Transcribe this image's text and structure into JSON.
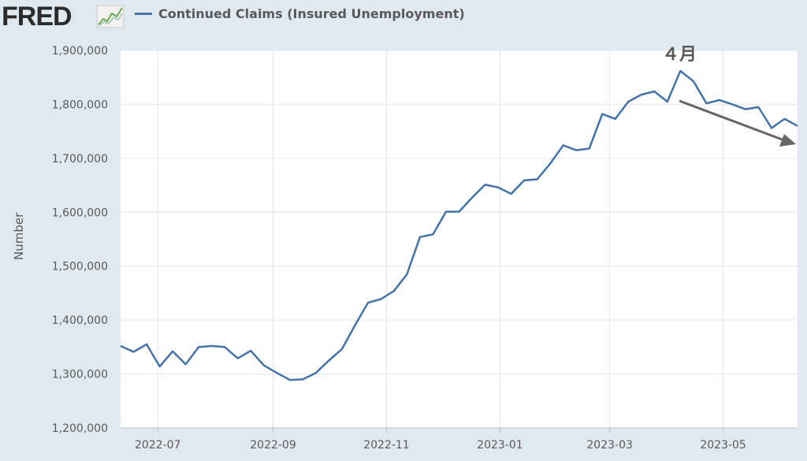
{
  "brand": {
    "name": "FRED"
  },
  "chart_data": {
    "type": "line",
    "title": "",
    "ylabel": "Number",
    "xlabel": "",
    "ylim": [
      1200000,
      1900000
    ],
    "yticks": [
      1200000,
      1300000,
      1400000,
      1500000,
      1600000,
      1700000,
      1800000,
      1900000
    ],
    "ytick_labels": [
      "1,200,000",
      "1,300,000",
      "1,400,000",
      "1,500,000",
      "1,600,000",
      "1,700,000",
      "1,800,000",
      "1,900,000"
    ],
    "xlim": [
      "2022-06-11",
      "2023-06-10"
    ],
    "xticks": [
      "2022-07-01",
      "2022-09-01",
      "2022-11-01",
      "2023-01-01",
      "2023-03-01",
      "2023-05-01"
    ],
    "xtick_labels": [
      "2022-07",
      "2022-09",
      "2022-11",
      "2023-01",
      "2023-03",
      "2023-05"
    ],
    "grid": true,
    "legend": "top-left",
    "series": [
      {
        "name": "Continued Claims (Insured Unemployment)",
        "color": "#4572a7",
        "x": [
          "2022-06-11",
          "2022-06-18",
          "2022-06-25",
          "2022-07-02",
          "2022-07-09",
          "2022-07-16",
          "2022-07-23",
          "2022-07-30",
          "2022-08-06",
          "2022-08-13",
          "2022-08-20",
          "2022-08-27",
          "2022-09-03",
          "2022-09-10",
          "2022-09-17",
          "2022-09-24",
          "2022-10-01",
          "2022-10-08",
          "2022-10-15",
          "2022-10-22",
          "2022-10-29",
          "2022-11-05",
          "2022-11-12",
          "2022-11-19",
          "2022-11-26",
          "2022-12-03",
          "2022-12-10",
          "2022-12-17",
          "2022-12-24",
          "2022-12-31",
          "2023-01-07",
          "2023-01-14",
          "2023-01-21",
          "2023-01-28",
          "2023-02-04",
          "2023-02-11",
          "2023-02-18",
          "2023-02-25",
          "2023-03-04",
          "2023-03-11",
          "2023-03-18",
          "2023-03-25",
          "2023-04-01",
          "2023-04-08",
          "2023-04-15",
          "2023-04-22",
          "2023-04-29",
          "2023-05-06",
          "2023-05-13",
          "2023-05-20",
          "2023-05-27",
          "2023-06-03",
          "2023-06-10"
        ],
        "values": [
          1352000,
          1341000,
          1355000,
          1314000,
          1342000,
          1318000,
          1350000,
          1352000,
          1350000,
          1329000,
          1343000,
          1316000,
          1302000,
          1289000,
          1290000,
          1302000,
          1325000,
          1346000,
          1390000,
          1432000,
          1439000,
          1454000,
          1485000,
          1554000,
          1559000,
          1601000,
          1601000,
          1627000,
          1651000,
          1646000,
          1634000,
          1659000,
          1661000,
          1690000,
          1724000,
          1715000,
          1718000,
          1782000,
          1773000,
          1805000,
          1818000,
          1824000,
          1805000,
          1862000,
          1843000,
          1802000,
          1808000,
          1800000,
          1791000,
          1795000,
          1756000,
          1773000,
          1760000
        ]
      }
    ],
    "annotations": [
      {
        "text": "４月"
      }
    ]
  }
}
